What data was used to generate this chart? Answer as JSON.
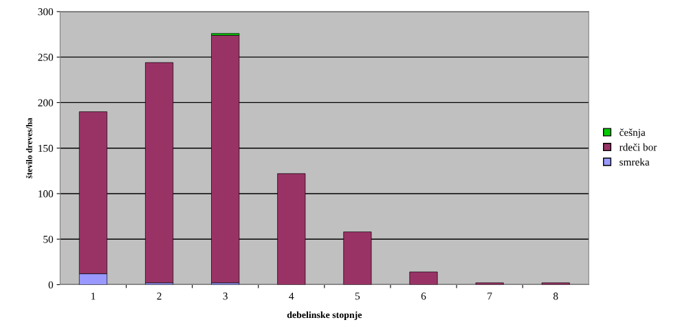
{
  "chart_data": {
    "type": "bar",
    "stacked": true,
    "xlabel": "debelinske stopnje",
    "ylabel": "število dreves/ha",
    "categories": [
      "1",
      "2",
      "3",
      "4",
      "5",
      "6",
      "7",
      "8"
    ],
    "series": [
      {
        "name": "smreka",
        "color": "#9999ff",
        "values": [
          12,
          2,
          2,
          0,
          0,
          0,
          0,
          0
        ]
      },
      {
        "name": "rdeči bor",
        "color": "#993366",
        "values": [
          178,
          242,
          272,
          122,
          58,
          14,
          2,
          2
        ]
      },
      {
        "name": "češnja",
        "color": "#00cc00",
        "values": [
          0,
          0,
          2,
          0,
          0,
          0,
          0,
          0
        ]
      }
    ],
    "ylim": [
      0,
      300
    ],
    "yticks": [
      0,
      50,
      100,
      150,
      200,
      250,
      300
    ],
    "grid": "y",
    "legend": "right"
  }
}
